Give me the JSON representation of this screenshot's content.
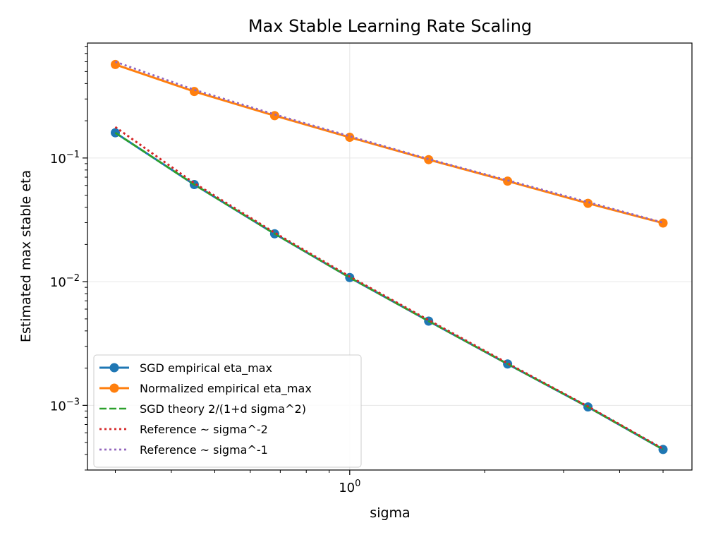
{
  "chart_data": {
    "type": "line",
    "title": "Max Stable Learning Rate Scaling",
    "xlabel": "sigma",
    "ylabel": "Estimated max stable eta",
    "x_scale": "log",
    "y_scale": "log",
    "x": [
      0.3,
      0.45,
      0.68,
      1.0,
      1.5,
      2.25,
      3.4,
      5.0
    ],
    "xlim": [
      0.26,
      5.8
    ],
    "ylim": [
      0.0003,
      0.85
    ],
    "x_ticks": [
      {
        "value": 1,
        "label": "10^0"
      }
    ],
    "y_ticks": [
      {
        "value": 0.1,
        "label": "10^-1"
      },
      {
        "value": 0.01,
        "label": "10^-2"
      },
      {
        "value": 0.001,
        "label": "10^-3"
      }
    ],
    "grid": true,
    "legend_position": "lower-left",
    "series": [
      {
        "name": "SGD empirical eta_max",
        "color": "#1f77b4",
        "style": "solid-markers",
        "values": [
          0.16,
          0.061,
          0.0244,
          0.0108,
          0.0048,
          0.00216,
          0.00097,
          0.00044
        ]
      },
      {
        "name": "Normalized empirical eta_max",
        "color": "#ff7f0e",
        "style": "solid-markers",
        "values": [
          0.57,
          0.345,
          0.22,
          0.147,
          0.097,
          0.065,
          0.043,
          0.0298
        ]
      },
      {
        "name": "SGD theory 2/(1+d sigma^2)",
        "color": "#2ca02c",
        "style": "dashed",
        "values": [
          0.16,
          0.061,
          0.0244,
          0.0108,
          0.0048,
          0.00216,
          0.00097,
          0.00044
        ]
      },
      {
        "name": "Reference ~ sigma^-2",
        "color": "#d62728",
        "style": "dotted",
        "values": [
          0.178,
          0.0626,
          0.0249,
          0.011,
          0.00489,
          0.00219,
          0.00098,
          0.000446
        ]
      },
      {
        "name": "Reference ~ sigma^-1",
        "color": "#9467bd",
        "style": "dotted",
        "values": [
          0.6,
          0.356,
          0.225,
          0.15,
          0.098,
          0.066,
          0.044,
          0.03
        ]
      }
    ]
  }
}
